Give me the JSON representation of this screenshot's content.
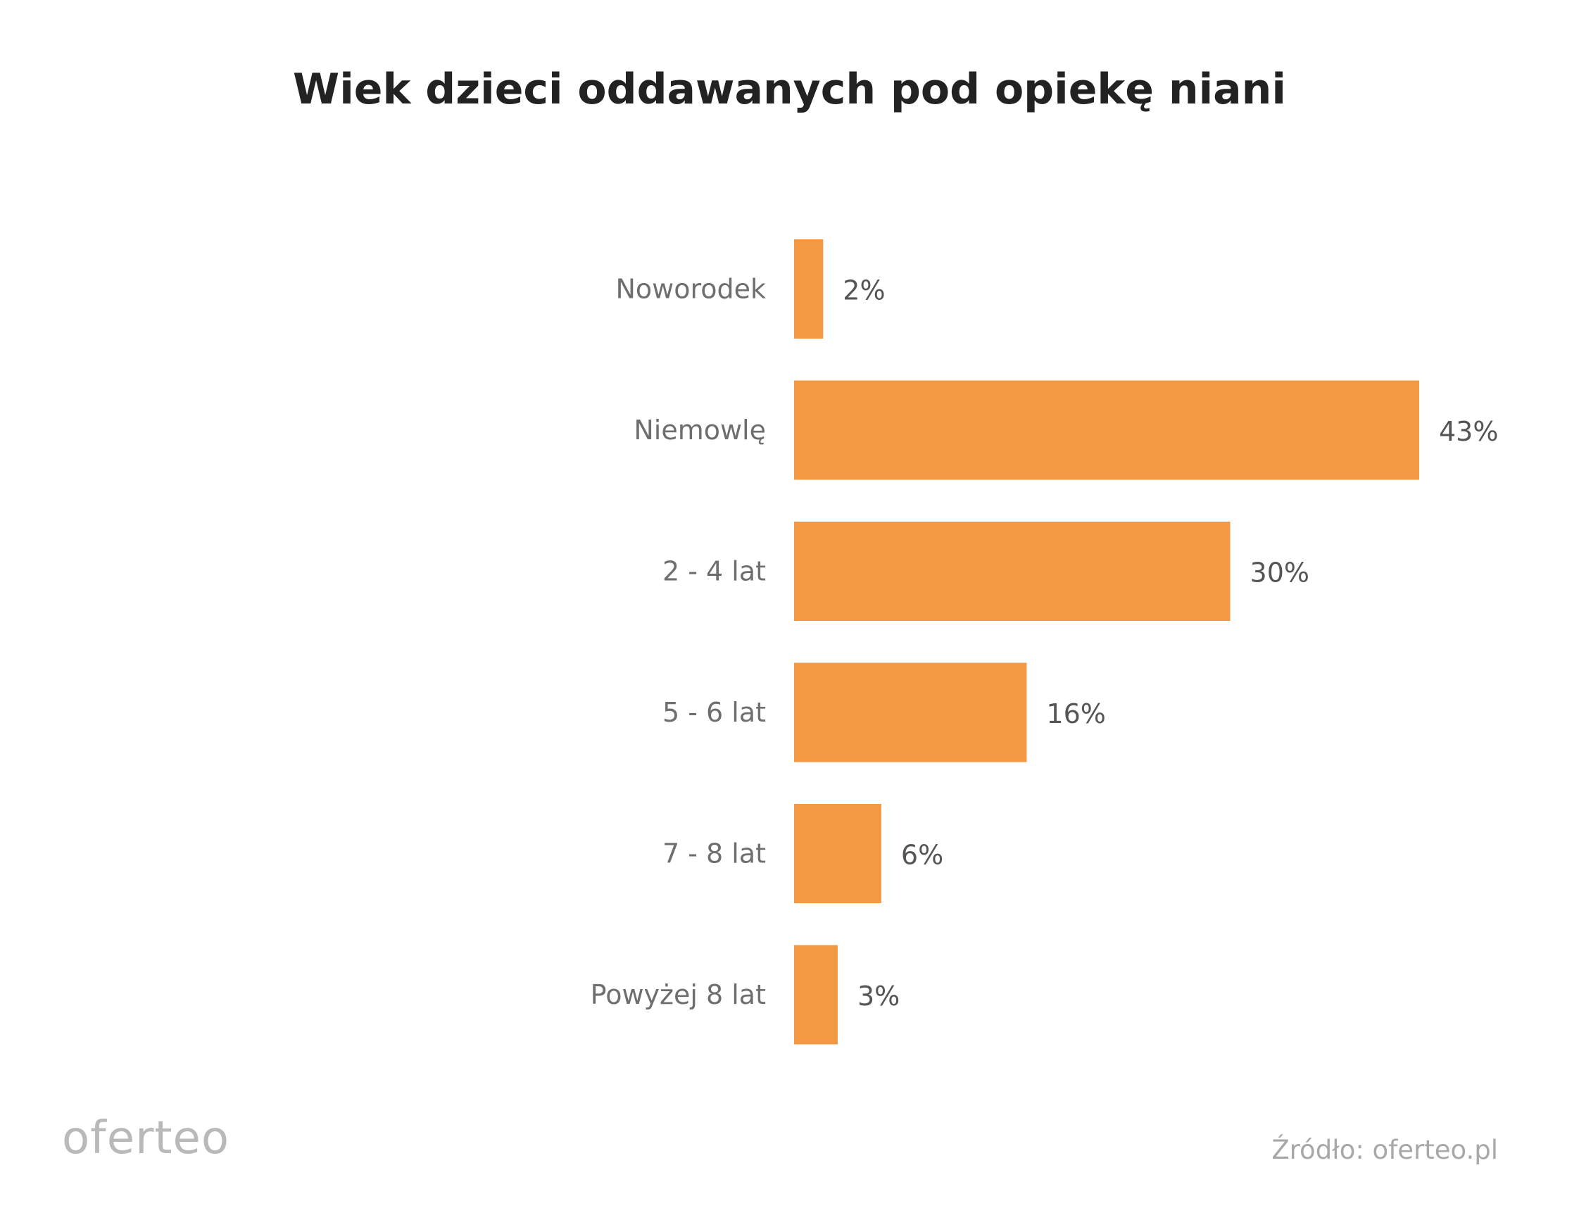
{
  "chart_data": {
    "type": "bar",
    "orientation": "horizontal",
    "title": "Wiek dzieci oddawanych pod opiekę niani",
    "categories": [
      "Noworodek",
      "Niemowlę",
      "2 - 4 lat",
      "5 - 6 lat",
      "7 - 8 lat",
      "Powyżej 8 lat"
    ],
    "values": [
      2,
      43,
      30,
      16,
      6,
      3
    ],
    "value_labels": [
      "2%",
      "43%",
      "30%",
      "16%",
      "6%",
      "3%"
    ],
    "unit": "%",
    "xlim": [
      0,
      43
    ],
    "grid": false,
    "legend": "none",
    "bar_color": "#f39943"
  },
  "branding": {
    "logo": "oferteo",
    "source": "Źródło: oferteo.pl"
  }
}
